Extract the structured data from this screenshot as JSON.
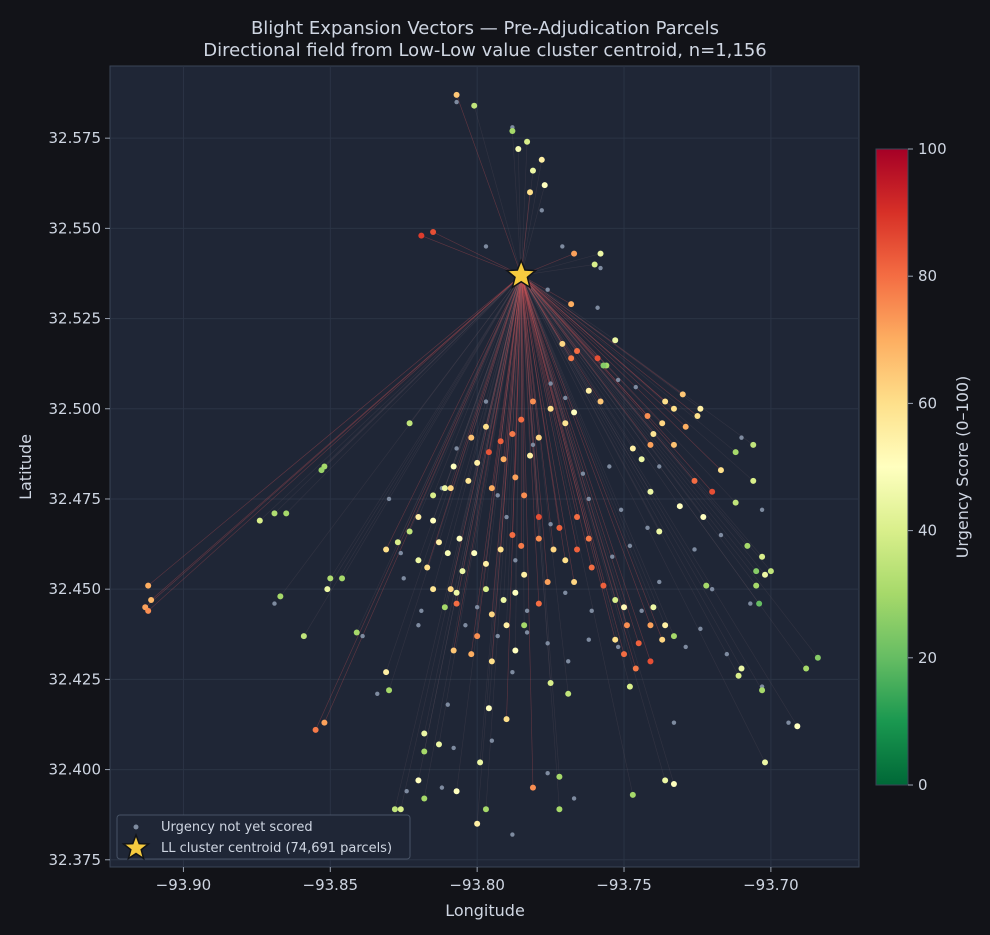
{
  "chart_data": {
    "type": "scatter",
    "title": "Blight Expansion Vectors — Pre-Adjudication Parcels",
    "subtitle": "Directional field from Low-Low value cluster centroid, n=1,156",
    "xlabel": "Longitude",
    "ylabel": "Latitude",
    "xlim": [
      -93.925,
      -93.67
    ],
    "ylim": [
      32.373,
      32.595
    ],
    "xticks": [
      -93.9,
      -93.85,
      -93.8,
      -93.75,
      -93.7
    ],
    "xtick_labels": [
      "−93.90",
      "−93.85",
      "−93.80",
      "−93.75",
      "−93.70"
    ],
    "yticks": [
      32.375,
      32.4,
      32.425,
      32.45,
      32.475,
      32.5,
      32.525,
      32.55,
      32.575
    ],
    "ytick_labels": [
      "32.375",
      "32.400",
      "32.425",
      "32.450",
      "32.475",
      "32.500",
      "32.525",
      "32.550",
      "32.575"
    ],
    "grid": true,
    "legend_position": "bottom-left",
    "legend": [
      {
        "label": "Urgency not yet scored",
        "marker": "dot",
        "color": "#7e8ba0"
      },
      {
        "label": "LL cluster centroid (74,691 parcels)",
        "marker": "star",
        "color": "#f6cb3f"
      }
    ],
    "centroid": {
      "x": -93.785,
      "y": 32.537
    },
    "colorbar": {
      "label": "Urgency Score (0–100)",
      "range": [
        0,
        100
      ],
      "ticks": [
        0,
        20,
        40,
        60,
        80,
        100
      ],
      "colormap": [
        "#006837",
        "#1a9850",
        "#66bd63",
        "#a6d96a",
        "#d9ef8b",
        "#ffffbf",
        "#fee08b",
        "#fdae61",
        "#f46d43",
        "#d73027",
        "#a50026"
      ]
    },
    "n_points": 1156,
    "scored_points_sample": [
      [
        -93.807,
        32.587,
        65
      ],
      [
        -93.801,
        32.584,
        35
      ],
      [
        -93.788,
        32.577,
        30
      ],
      [
        -93.783,
        32.574,
        40
      ],
      [
        -93.786,
        32.572,
        48
      ],
      [
        -93.778,
        32.569,
        55
      ],
      [
        -93.781,
        32.566,
        45
      ],
      [
        -93.777,
        32.562,
        50
      ],
      [
        -93.782,
        32.56,
        60
      ],
      [
        -93.815,
        32.549,
        85
      ],
      [
        -93.819,
        32.548,
        88
      ],
      [
        -93.767,
        32.543,
        72
      ],
      [
        -93.758,
        32.543,
        45
      ],
      [
        -93.76,
        32.54,
        40
      ],
      [
        -93.768,
        32.529,
        70
      ],
      [
        -93.823,
        32.496,
        35
      ],
      [
        -93.852,
        32.484,
        30
      ],
      [
        -93.853,
        32.483,
        28
      ],
      [
        -93.869,
        32.471,
        32
      ],
      [
        -93.865,
        32.471,
        30
      ],
      [
        -93.874,
        32.469,
        40
      ],
      [
        -93.912,
        32.451,
        70
      ],
      [
        -93.913,
        32.445,
        72
      ],
      [
        -93.911,
        32.447,
        68
      ],
      [
        -93.912,
        32.444,
        75
      ],
      [
        -93.867,
        32.448,
        30
      ],
      [
        -93.85,
        32.453,
        32
      ],
      [
        -93.846,
        32.453,
        30
      ],
      [
        -93.851,
        32.45,
        45
      ],
      [
        -93.841,
        32.438,
        30
      ],
      [
        -93.859,
        32.437,
        35
      ],
      [
        -93.852,
        32.413,
        72
      ],
      [
        -93.855,
        32.411,
        78
      ],
      [
        -93.831,
        32.427,
        55
      ],
      [
        -93.83,
        32.422,
        30
      ],
      [
        -93.818,
        32.41,
        45
      ],
      [
        -93.818,
        32.405,
        30
      ],
      [
        -93.813,
        32.407,
        45
      ],
      [
        -93.82,
        32.397,
        50
      ],
      [
        -93.818,
        32.392,
        30
      ],
      [
        -93.828,
        32.389,
        35
      ],
      [
        -93.826,
        32.389,
        40
      ],
      [
        -93.807,
        32.394,
        50
      ],
      [
        -93.8,
        32.385,
        55
      ],
      [
        -93.797,
        32.389,
        30
      ],
      [
        -93.799,
        32.402,
        45
      ],
      [
        -93.79,
        32.414,
        60
      ],
      [
        -93.772,
        32.398,
        30
      ],
      [
        -93.781,
        32.395,
        75
      ],
      [
        -93.772,
        32.389,
        30
      ],
      [
        -93.747,
        32.393,
        30
      ],
      [
        -93.736,
        32.397,
        45
      ],
      [
        -93.733,
        32.396,
        50
      ],
      [
        -93.702,
        32.402,
        45
      ],
      [
        -93.691,
        32.412,
        50
      ],
      [
        -93.688,
        32.428,
        30
      ],
      [
        -93.684,
        32.431,
        25
      ],
      [
        -93.703,
        32.422,
        30
      ],
      [
        -93.711,
        32.426,
        40
      ],
      [
        -93.71,
        32.428,
        45
      ],
      [
        -93.733,
        32.437,
        30
      ],
      [
        -93.722,
        32.451,
        30
      ],
      [
        -93.748,
        32.423,
        40
      ],
      [
        -93.775,
        32.424,
        40
      ],
      [
        -93.769,
        32.421,
        35
      ],
      [
        -93.796,
        32.417,
        50
      ],
      [
        -93.795,
        32.43,
        60
      ],
      [
        -93.802,
        32.432,
        70
      ],
      [
        -93.808,
        32.433,
        65
      ],
      [
        -93.787,
        32.433,
        50
      ],
      [
        -93.726,
        32.48,
        80
      ],
      [
        -93.72,
        32.477,
        85
      ],
      [
        -93.717,
        32.483,
        60
      ],
      [
        -93.712,
        32.488,
        30
      ],
      [
        -93.706,
        32.49,
        35
      ],
      [
        -93.712,
        32.474,
        35
      ],
      [
        -93.706,
        32.48,
        40
      ],
      [
        -93.708,
        32.462,
        30
      ],
      [
        -93.703,
        32.459,
        40
      ],
      [
        -93.7,
        32.455,
        35
      ],
      [
        -93.705,
        32.455,
        25
      ],
      [
        -93.704,
        32.446,
        20
      ],
      [
        -93.705,
        32.451,
        30
      ],
      [
        -93.702,
        32.454,
        45
      ],
      [
        -93.723,
        32.47,
        50
      ],
      [
        -93.738,
        32.466,
        45
      ],
      [
        -93.731,
        32.473,
        50
      ],
      [
        -93.741,
        32.477,
        45
      ],
      [
        -93.724,
        32.5,
        55
      ],
      [
        -93.725,
        32.498,
        60
      ],
      [
        -93.73,
        32.504,
        65
      ],
      [
        -93.733,
        32.5,
        60
      ],
      [
        -93.737,
        32.496,
        62
      ],
      [
        -93.74,
        32.493,
        58
      ],
      [
        -93.733,
        32.49,
        66
      ],
      [
        -93.729,
        32.495,
        70
      ],
      [
        -93.741,
        32.49,
        72
      ],
      [
        -93.744,
        32.486,
        45
      ],
      [
        -93.747,
        32.489,
        55
      ],
      [
        -93.742,
        32.498,
        75
      ],
      [
        -93.736,
        32.502,
        60
      ],
      [
        -93.753,
        32.519,
        45
      ],
      [
        -93.756,
        32.512,
        30
      ],
      [
        -93.757,
        32.512,
        25
      ],
      [
        -93.759,
        32.514,
        85
      ],
      [
        -93.766,
        32.516,
        80
      ],
      [
        -93.768,
        32.514,
        78
      ],
      [
        -93.771,
        32.518,
        62
      ],
      [
        -93.758,
        32.502,
        65
      ],
      [
        -93.762,
        32.505,
        55
      ],
      [
        -93.767,
        32.499,
        50
      ],
      [
        -93.77,
        32.496,
        58
      ],
      [
        -93.775,
        32.5,
        60
      ],
      [
        -93.781,
        32.502,
        75
      ],
      [
        -93.785,
        32.497,
        80
      ],
      [
        -93.788,
        32.493,
        78
      ],
      [
        -93.792,
        32.491,
        82
      ],
      [
        -93.796,
        32.488,
        84
      ],
      [
        -93.791,
        32.486,
        70
      ],
      [
        -93.787,
        32.481,
        72
      ],
      [
        -93.782,
        32.487,
        55
      ],
      [
        -93.779,
        32.492,
        62
      ],
      [
        -93.797,
        32.495,
        60
      ],
      [
        -93.802,
        32.492,
        66
      ],
      [
        -93.8,
        32.485,
        55
      ],
      [
        -93.803,
        32.48,
        58
      ],
      [
        -93.808,
        32.484,
        50
      ],
      [
        -93.809,
        32.478,
        62
      ],
      [
        -93.795,
        32.478,
        70
      ],
      [
        -93.784,
        32.476,
        75
      ],
      [
        -93.779,
        32.47,
        85
      ],
      [
        -93.772,
        32.467,
        82
      ],
      [
        -93.766,
        32.47,
        80
      ],
      [
        -93.762,
        32.464,
        78
      ],
      [
        -93.766,
        32.461,
        82
      ],
      [
        -93.77,
        32.458,
        60
      ],
      [
        -93.774,
        32.461,
        62
      ],
      [
        -93.779,
        32.464,
        75
      ],
      [
        -93.785,
        32.462,
        78
      ],
      [
        -93.788,
        32.465,
        80
      ],
      [
        -93.792,
        32.461,
        60
      ],
      [
        -93.797,
        32.457,
        55
      ],
      [
        -93.801,
        32.46,
        50
      ],
      [
        -93.805,
        32.455,
        45
      ],
      [
        -93.81,
        32.46,
        48
      ],
      [
        -93.806,
        32.464,
        50
      ],
      [
        -93.813,
        32.463,
        55
      ],
      [
        -93.817,
        32.456,
        60
      ],
      [
        -93.815,
        32.45,
        58
      ],
      [
        -93.809,
        32.45,
        62
      ],
      [
        -93.797,
        32.45,
        40
      ],
      [
        -93.791,
        32.447,
        45
      ],
      [
        -93.787,
        32.449,
        50
      ],
      [
        -93.784,
        32.454,
        55
      ],
      [
        -93.779,
        32.446,
        80
      ],
      [
        -93.776,
        32.452,
        72
      ],
      [
        -93.767,
        32.452,
        62
      ],
      [
        -93.761,
        32.456,
        80
      ],
      [
        -93.757,
        32.451,
        82
      ],
      [
        -93.753,
        32.447,
        40
      ],
      [
        -93.75,
        32.445,
        52
      ],
      [
        -93.749,
        32.44,
        75
      ],
      [
        -93.745,
        32.435,
        82
      ],
      [
        -93.741,
        32.43,
        85
      ],
      [
        -93.746,
        32.428,
        78
      ],
      [
        -93.75,
        32.432,
        80
      ],
      [
        -93.753,
        32.436,
        60
      ],
      [
        -93.741,
        32.44,
        72
      ],
      [
        -93.737,
        32.436,
        62
      ],
      [
        -93.736,
        32.44,
        55
      ],
      [
        -93.74,
        32.445,
        45
      ],
      [
        -93.831,
        32.461,
        60
      ],
      [
        -93.827,
        32.463,
        40
      ],
      [
        -93.823,
        32.466,
        35
      ],
      [
        -93.82,
        32.458,
        45
      ],
      [
        -93.815,
        32.469,
        50
      ],
      [
        -93.815,
        32.476,
        40
      ],
      [
        -93.811,
        32.478,
        45
      ],
      [
        -93.82,
        32.47,
        55
      ],
      [
        -93.811,
        32.445,
        30
      ],
      [
        -93.807,
        32.449,
        45
      ],
      [
        -93.807,
        32.446,
        80
      ],
      [
        -93.795,
        32.443,
        62
      ],
      [
        -93.79,
        32.44,
        55
      ],
      [
        -93.784,
        32.44,
        30
      ],
      [
        -93.8,
        32.437,
        75
      ]
    ],
    "unscored_points_sample": [
      [
        -93.807,
        32.585
      ],
      [
        -93.788,
        32.578
      ],
      [
        -93.778,
        32.555
      ],
      [
        -93.797,
        32.545
      ],
      [
        -93.771,
        32.545
      ],
      [
        -93.758,
        32.539
      ],
      [
        -93.776,
        32.533
      ],
      [
        -93.759,
        32.528
      ],
      [
        -93.812,
        32.478
      ],
      [
        -93.79,
        32.47
      ],
      [
        -93.775,
        32.468
      ],
      [
        -93.8,
        32.445
      ],
      [
        -93.783,
        32.438
      ],
      [
        -93.748,
        32.462
      ],
      [
        -93.77,
        32.449
      ],
      [
        -93.762,
        32.436
      ],
      [
        -93.715,
        32.432
      ],
      [
        -93.729,
        32.434
      ],
      [
        -93.72,
        32.45
      ],
      [
        -93.707,
        32.446
      ],
      [
        -93.694,
        32.413
      ],
      [
        -93.703,
        32.423
      ],
      [
        -93.752,
        32.434
      ],
      [
        -93.744,
        32.444
      ],
      [
        -93.726,
        32.461
      ],
      [
        -93.717,
        32.465
      ],
      [
        -93.742,
        32.467
      ],
      [
        -93.754,
        32.459
      ],
      [
        -93.783,
        32.444
      ],
      [
        -93.793,
        32.437
      ],
      [
        -93.804,
        32.44
      ],
      [
        -93.819,
        32.444
      ],
      [
        -93.826,
        32.46
      ],
      [
        -93.825,
        32.453
      ],
      [
        -93.869,
        32.446
      ],
      [
        -93.839,
        32.437
      ],
      [
        -93.834,
        32.421
      ],
      [
        -93.824,
        32.394
      ],
      [
        -93.812,
        32.395
      ],
      [
        -93.808,
        32.406
      ],
      [
        -93.795,
        32.408
      ],
      [
        -93.788,
        32.382
      ],
      [
        -93.776,
        32.399
      ],
      [
        -93.767,
        32.392
      ],
      [
        -93.761,
        32.444
      ],
      [
        -93.776,
        32.435
      ],
      [
        -93.793,
        32.476
      ],
      [
        -93.781,
        32.49
      ],
      [
        -93.77,
        32.503
      ],
      [
        -93.752,
        32.508
      ],
      [
        -93.738,
        32.484
      ],
      [
        -93.746,
        32.506
      ],
      [
        -93.755,
        32.484
      ],
      [
        -93.775,
        32.507
      ],
      [
        -93.797,
        32.502
      ],
      [
        -93.787,
        32.458
      ],
      [
        -93.764,
        32.482
      ],
      [
        -93.738,
        32.452
      ],
      [
        -93.733,
        32.413
      ],
      [
        -93.724,
        32.439
      ],
      [
        -93.788,
        32.427
      ],
      [
        -93.81,
        32.418
      ],
      [
        -93.82,
        32.44
      ],
      [
        -93.83,
        32.475
      ],
      [
        -93.807,
        32.489
      ],
      [
        -93.762,
        32.475
      ],
      [
        -93.751,
        32.472
      ],
      [
        -93.769,
        32.43
      ],
      [
        -93.703,
        32.472
      ],
      [
        -93.71,
        32.492
      ]
    ]
  }
}
